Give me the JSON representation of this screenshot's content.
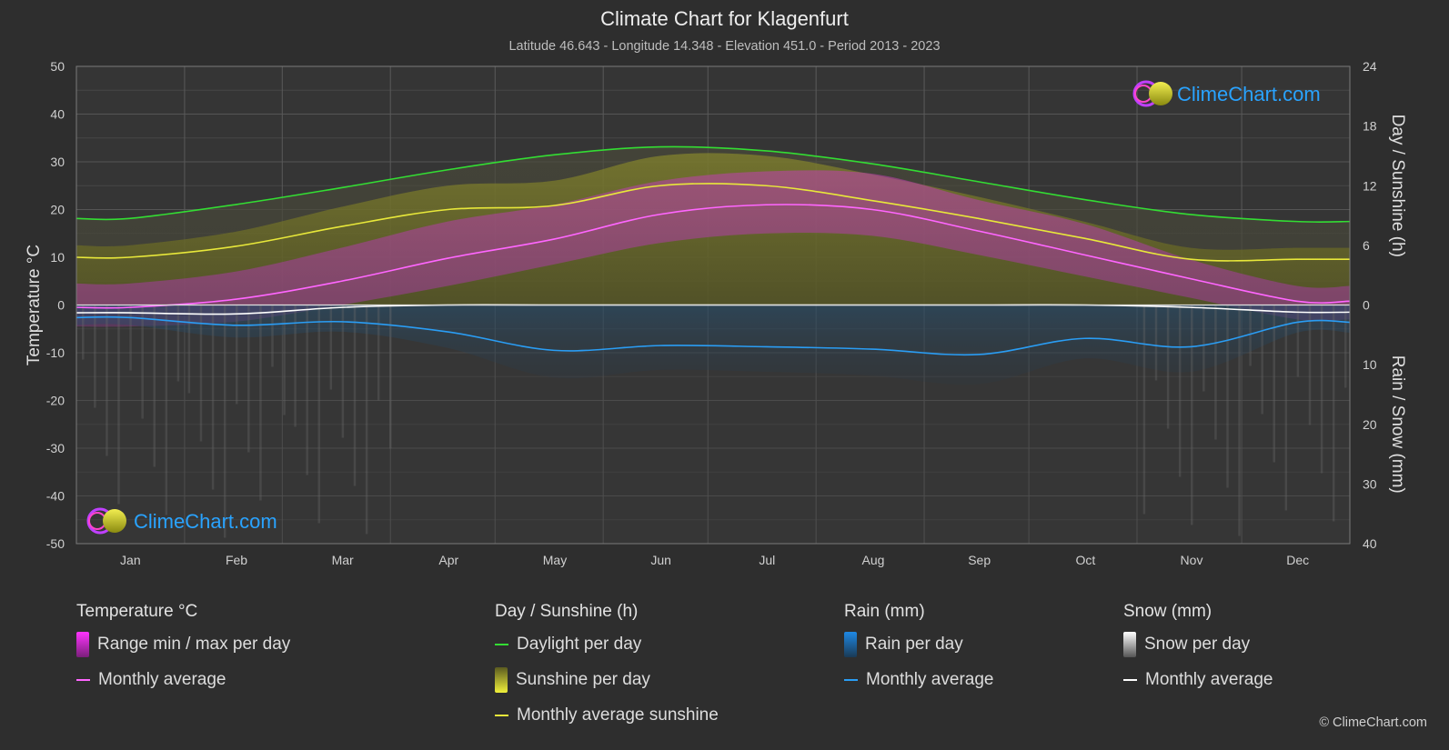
{
  "header": {
    "title": "Climate Chart for Klagenfurt",
    "subtitle": "Latitude 46.643 - Longitude 14.348 - Elevation 451.0 - Period 2013 - 2023"
  },
  "brand": {
    "logo_text": "ClimeChart.com"
  },
  "copyright": "© ClimeChart.com",
  "legend": {
    "temperature": {
      "heading": "Temperature °C",
      "items": [
        {
          "label": "Range min / max per day",
          "kind": "bar",
          "color": "#e040e0"
        },
        {
          "label": "Monthly average",
          "kind": "line",
          "color": "#ff66ff"
        }
      ]
    },
    "sunshine": {
      "heading": "Day / Sunshine (h)",
      "items": [
        {
          "label": "Daylight per day",
          "kind": "line",
          "color": "#33dd33"
        },
        {
          "label": "Sunshine per day",
          "kind": "bar",
          "color": "#d6d633"
        },
        {
          "label": "Monthly average sunshine",
          "kind": "line",
          "color": "#e8e83a"
        }
      ]
    },
    "rain": {
      "heading": "Rain (mm)",
      "items": [
        {
          "label": "Rain per day",
          "kind": "bar",
          "color": "#1e88e5"
        },
        {
          "label": "Monthly average",
          "kind": "line",
          "color": "#2a9df4"
        }
      ]
    },
    "snow": {
      "heading": "Snow (mm)",
      "items": [
        {
          "label": "Snow per day",
          "kind": "bar",
          "color": "#cccccc"
        },
        {
          "label": "Monthly average",
          "kind": "line",
          "color": "#ffffff"
        }
      ]
    }
  },
  "chart_data": {
    "type": "line",
    "x_axis": {
      "categories": [
        "Jan",
        "Feb",
        "Mar",
        "Apr",
        "May",
        "Jun",
        "Jul",
        "Aug",
        "Sep",
        "Oct",
        "Nov",
        "Dec"
      ]
    },
    "left_axis": {
      "label": "Temperature °C",
      "range": [
        -50,
        50
      ],
      "ticks": [
        "50",
        "40",
        "30",
        "20",
        "10",
        "0",
        "-10",
        "-20",
        "-30",
        "-40",
        "-50"
      ]
    },
    "right_axis_top": {
      "label": "Day / Sunshine (h)",
      "range": [
        0,
        24
      ],
      "ticks": [
        "24",
        "18",
        "12",
        "6",
        "0"
      ]
    },
    "right_axis_bottom": {
      "label": "Rain / Snow (mm)",
      "range": [
        0,
        40
      ],
      "ticks": [
        "10",
        "20",
        "30",
        "40"
      ]
    },
    "grid": true,
    "series": [
      {
        "name": "Daylight per day",
        "axis": "hours",
        "color": "#33dd33",
        "values": [
          8.7,
          10.1,
          11.8,
          13.6,
          15.1,
          15.9,
          15.5,
          14.2,
          12.4,
          10.6,
          9.1,
          8.4
        ]
      },
      {
        "name": "Monthly average sunshine",
        "axis": "hours",
        "color": "#e8e83a",
        "values": [
          4.8,
          5.9,
          7.9,
          9.6,
          10.0,
          12.0,
          12.0,
          10.5,
          8.7,
          6.7,
          4.6,
          4.6
        ]
      },
      {
        "name": "Temperature monthly average",
        "axis": "temperature",
        "color": "#ff66ff",
        "values": [
          -0.5,
          1.2,
          5.0,
          9.8,
          13.8,
          19.0,
          21.0,
          20.0,
          15.5,
          10.5,
          5.5,
          0.8
        ]
      },
      {
        "name": "Snow monthly average",
        "axis": "precip",
        "color": "#ffffff",
        "values": [
          1.3,
          1.5,
          0.4,
          0.0,
          0.0,
          0.0,
          0.0,
          0.0,
          0.0,
          0.0,
          0.4,
          1.2
        ]
      },
      {
        "name": "Rain monthly average",
        "axis": "precip",
        "color": "#2a9df4",
        "values": [
          2.1,
          3.4,
          2.8,
          4.5,
          7.6,
          6.8,
          7.0,
          7.4,
          8.3,
          5.6,
          7.0,
          2.9
        ]
      }
    ],
    "temperature_range": {
      "name": "Range min / max per day",
      "min": [
        -4.5,
        -3.5,
        0.0,
        4.0,
        8.5,
        13.0,
        15.0,
        14.5,
        10.5,
        6.0,
        1.5,
        -3.0
      ],
      "max": [
        4.5,
        7.0,
        12.0,
        17.5,
        21.0,
        26.0,
        28.0,
        27.5,
        22.0,
        17.0,
        9.5,
        4.0
      ]
    }
  }
}
